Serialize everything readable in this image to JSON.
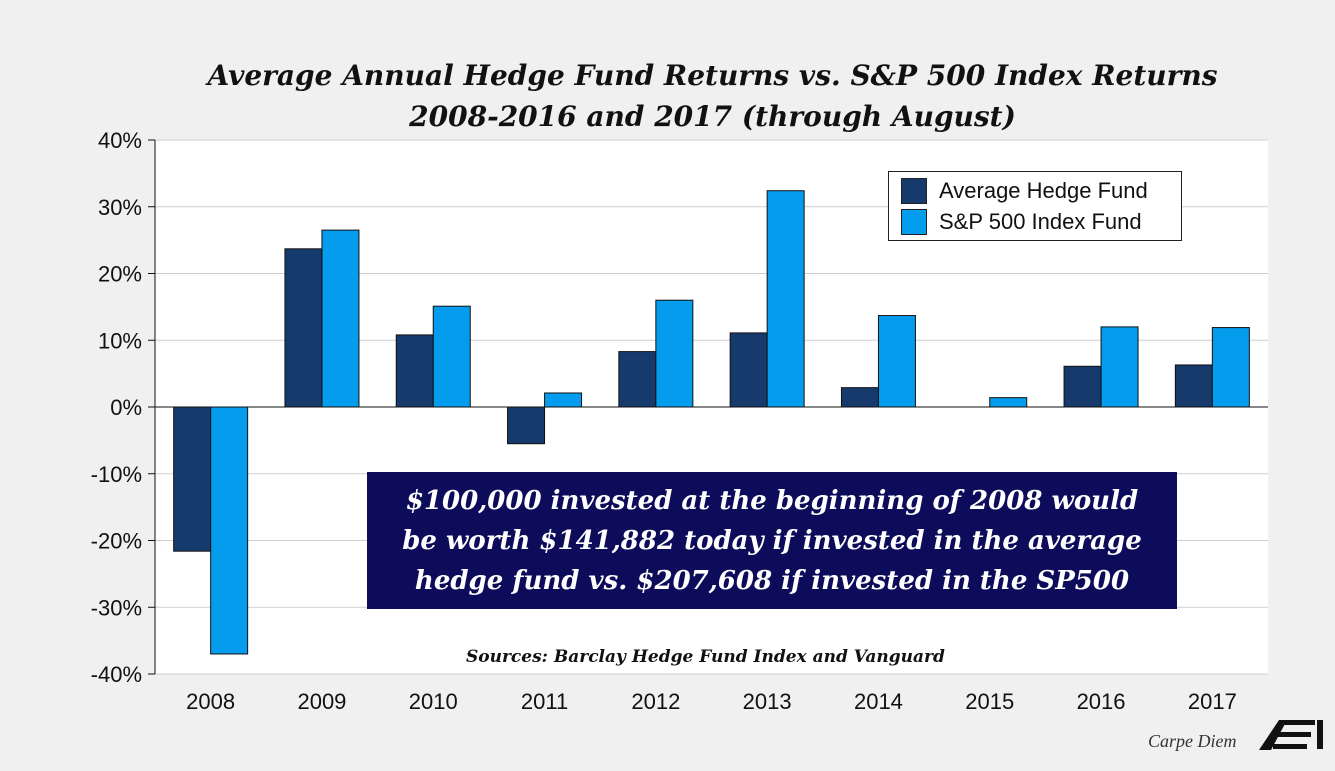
{
  "title_line1": "Average Annual Hedge Fund Returns vs. S&P 500 Index Returns",
  "title_line2": "2008-2016 and 2017 (through August)",
  "chart_data": {
    "type": "bar",
    "title": "Average Annual Hedge Fund Returns vs. S&P 500 Index Returns 2008-2016 and 2017 (through August)",
    "categories": [
      "2008",
      "2009",
      "2010",
      "2011",
      "2012",
      "2013",
      "2014",
      "2015",
      "2016",
      "2017"
    ],
    "series": [
      {
        "name": "Average Hedge Fund",
        "color": "#163a6c",
        "values": [
          -21.6,
          23.7,
          10.8,
          -5.5,
          8.3,
          11.1,
          2.9,
          0.0,
          6.1,
          6.3
        ]
      },
      {
        "name": "S&P 500 Index Fund",
        "color": "#049cec",
        "values": [
          -37.0,
          26.5,
          15.1,
          2.1,
          16.0,
          32.4,
          13.7,
          1.4,
          12.0,
          11.9
        ]
      }
    ],
    "ylim": [
      -40,
      40
    ],
    "yticks": [
      40,
      30,
      20,
      10,
      0,
      -10,
      -20,
      -30,
      -40
    ],
    "ytick_labels": [
      "40%",
      "30%",
      "20%",
      "10%",
      "0%",
      "-10%",
      "-20%",
      "-30%",
      "-40%"
    ],
    "xlabel": "",
    "ylabel": "",
    "grid": true,
    "legend_position": "top-right"
  },
  "callout": {
    "line1": "$100,000 invested at the beginning of 2008 would",
    "line2": "be worth $141,882 today if invested in the average",
    "line3": "hedge fund vs. $207,608 if invested in the SP500"
  },
  "sources": "Sources: Barclay Hedge Fund Index and Vanguard",
  "credit": "Carpe Diem",
  "logo_text": "AEI"
}
